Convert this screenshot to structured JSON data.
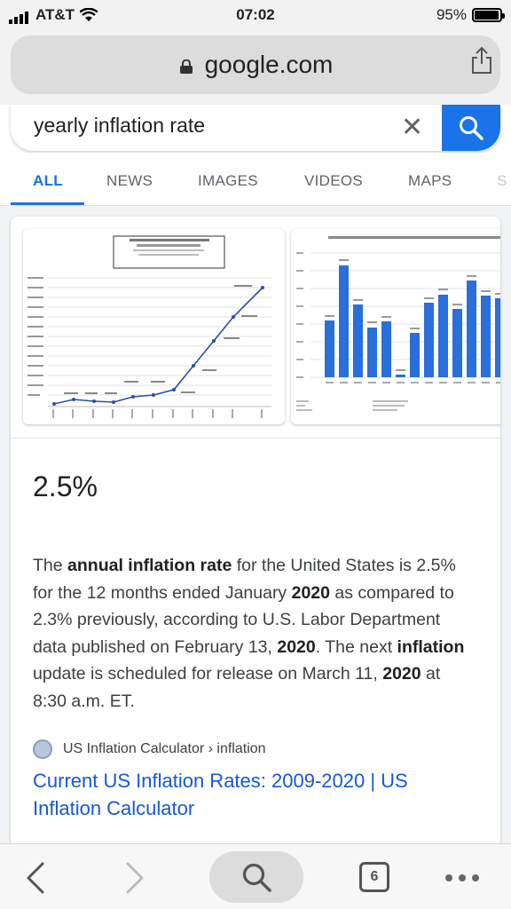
{
  "status_bar": {
    "carrier": "AT&T",
    "time": "07:02",
    "battery": "95%",
    "battery_level": 0.95
  },
  "browser": {
    "url": "google.com"
  },
  "search": {
    "query": "yearly inflation rate"
  },
  "tabs": [
    {
      "label": "ALL",
      "active": true
    },
    {
      "label": "NEWS",
      "active": false
    },
    {
      "label": "IMAGES",
      "active": false
    },
    {
      "label": "VIDEOS",
      "active": false
    },
    {
      "label": "MAPS",
      "active": false
    },
    {
      "label": "S",
      "active": false
    }
  ],
  "answer": {
    "value": "2.5%",
    "description_parts": [
      {
        "t": "The ",
        "b": false
      },
      {
        "t": "annual inflation rate",
        "b": true
      },
      {
        "t": " for the United States is 2.5% for the 12 months ended January ",
        "b": false
      },
      {
        "t": "2020",
        "b": true
      },
      {
        "t": " as compared to 2.3% previously, according to U.S. Labor Department data published on February 13, ",
        "b": false
      },
      {
        "t": "2020",
        "b": true
      },
      {
        "t": ". The next ",
        "b": false
      },
      {
        "t": "inflation",
        "b": true
      },
      {
        "t": " update is scheduled for release on March 11, ",
        "b": false
      },
      {
        "t": "2020",
        "b": true
      },
      {
        "t": " at 8:30 a.m. ET.",
        "b": false
      }
    ],
    "source": "US Inflation Calculator › inflation",
    "link_title": "Current US Inflation Rates: 2009-2020 | US Inflation Calculator"
  },
  "toolbar": {
    "tab_count": "6"
  },
  "colors": {
    "accent": "#1a73e8",
    "link": "#1558d6",
    "bar_blue": "#2a6fdb"
  }
}
